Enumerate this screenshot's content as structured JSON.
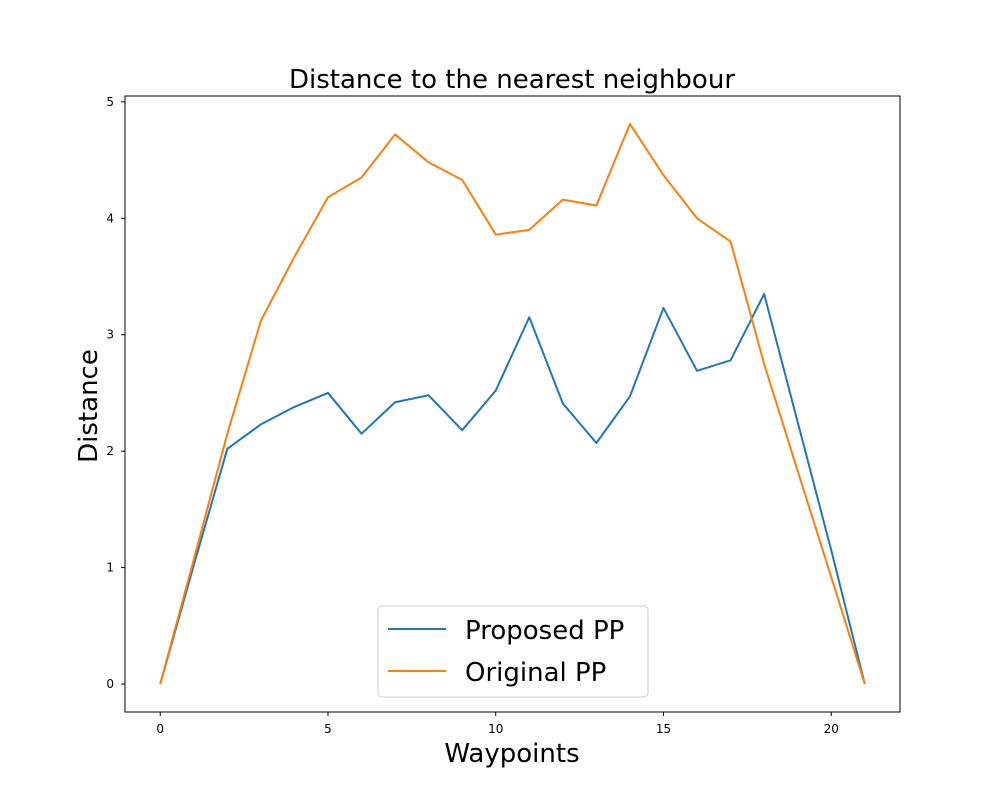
{
  "chart_data": {
    "type": "line",
    "title": "Distance to the nearest neighbour",
    "xlabel": "Waypoints",
    "ylabel": "Distance",
    "xlim": [
      -1.05,
      22.05
    ],
    "ylim": [
      -0.24,
      5.05
    ],
    "xticks": [
      0,
      5,
      10,
      15,
      20
    ],
    "yticks": [
      0,
      1,
      2,
      3,
      4,
      5
    ],
    "grid": false,
    "legend_position": "lower-center",
    "x": [
      0,
      1,
      2,
      3,
      4,
      5,
      6,
      7,
      8,
      9,
      10,
      11,
      12,
      13,
      14,
      15,
      16,
      17,
      18,
      19,
      20,
      21
    ],
    "series": [
      {
        "name": "Proposed PP",
        "color": "#1f77b4",
        "values": [
          0.0,
          1.02,
          2.02,
          2.23,
          2.38,
          2.5,
          2.15,
          2.42,
          2.48,
          2.18,
          2.52,
          3.15,
          2.41,
          2.07,
          2.47,
          3.23,
          2.69,
          2.78,
          3.35,
          2.25,
          1.15,
          0.0
        ]
      },
      {
        "name": "Original PP",
        "color": "#ff7f0e",
        "values": [
          0.0,
          1.07,
          2.15,
          3.12,
          3.67,
          4.18,
          4.35,
          4.72,
          4.48,
          4.33,
          3.86,
          3.9,
          4.16,
          4.11,
          4.81,
          4.37,
          4.0,
          3.8,
          2.75,
          1.83,
          0.92,
          0.0
        ]
      }
    ]
  }
}
